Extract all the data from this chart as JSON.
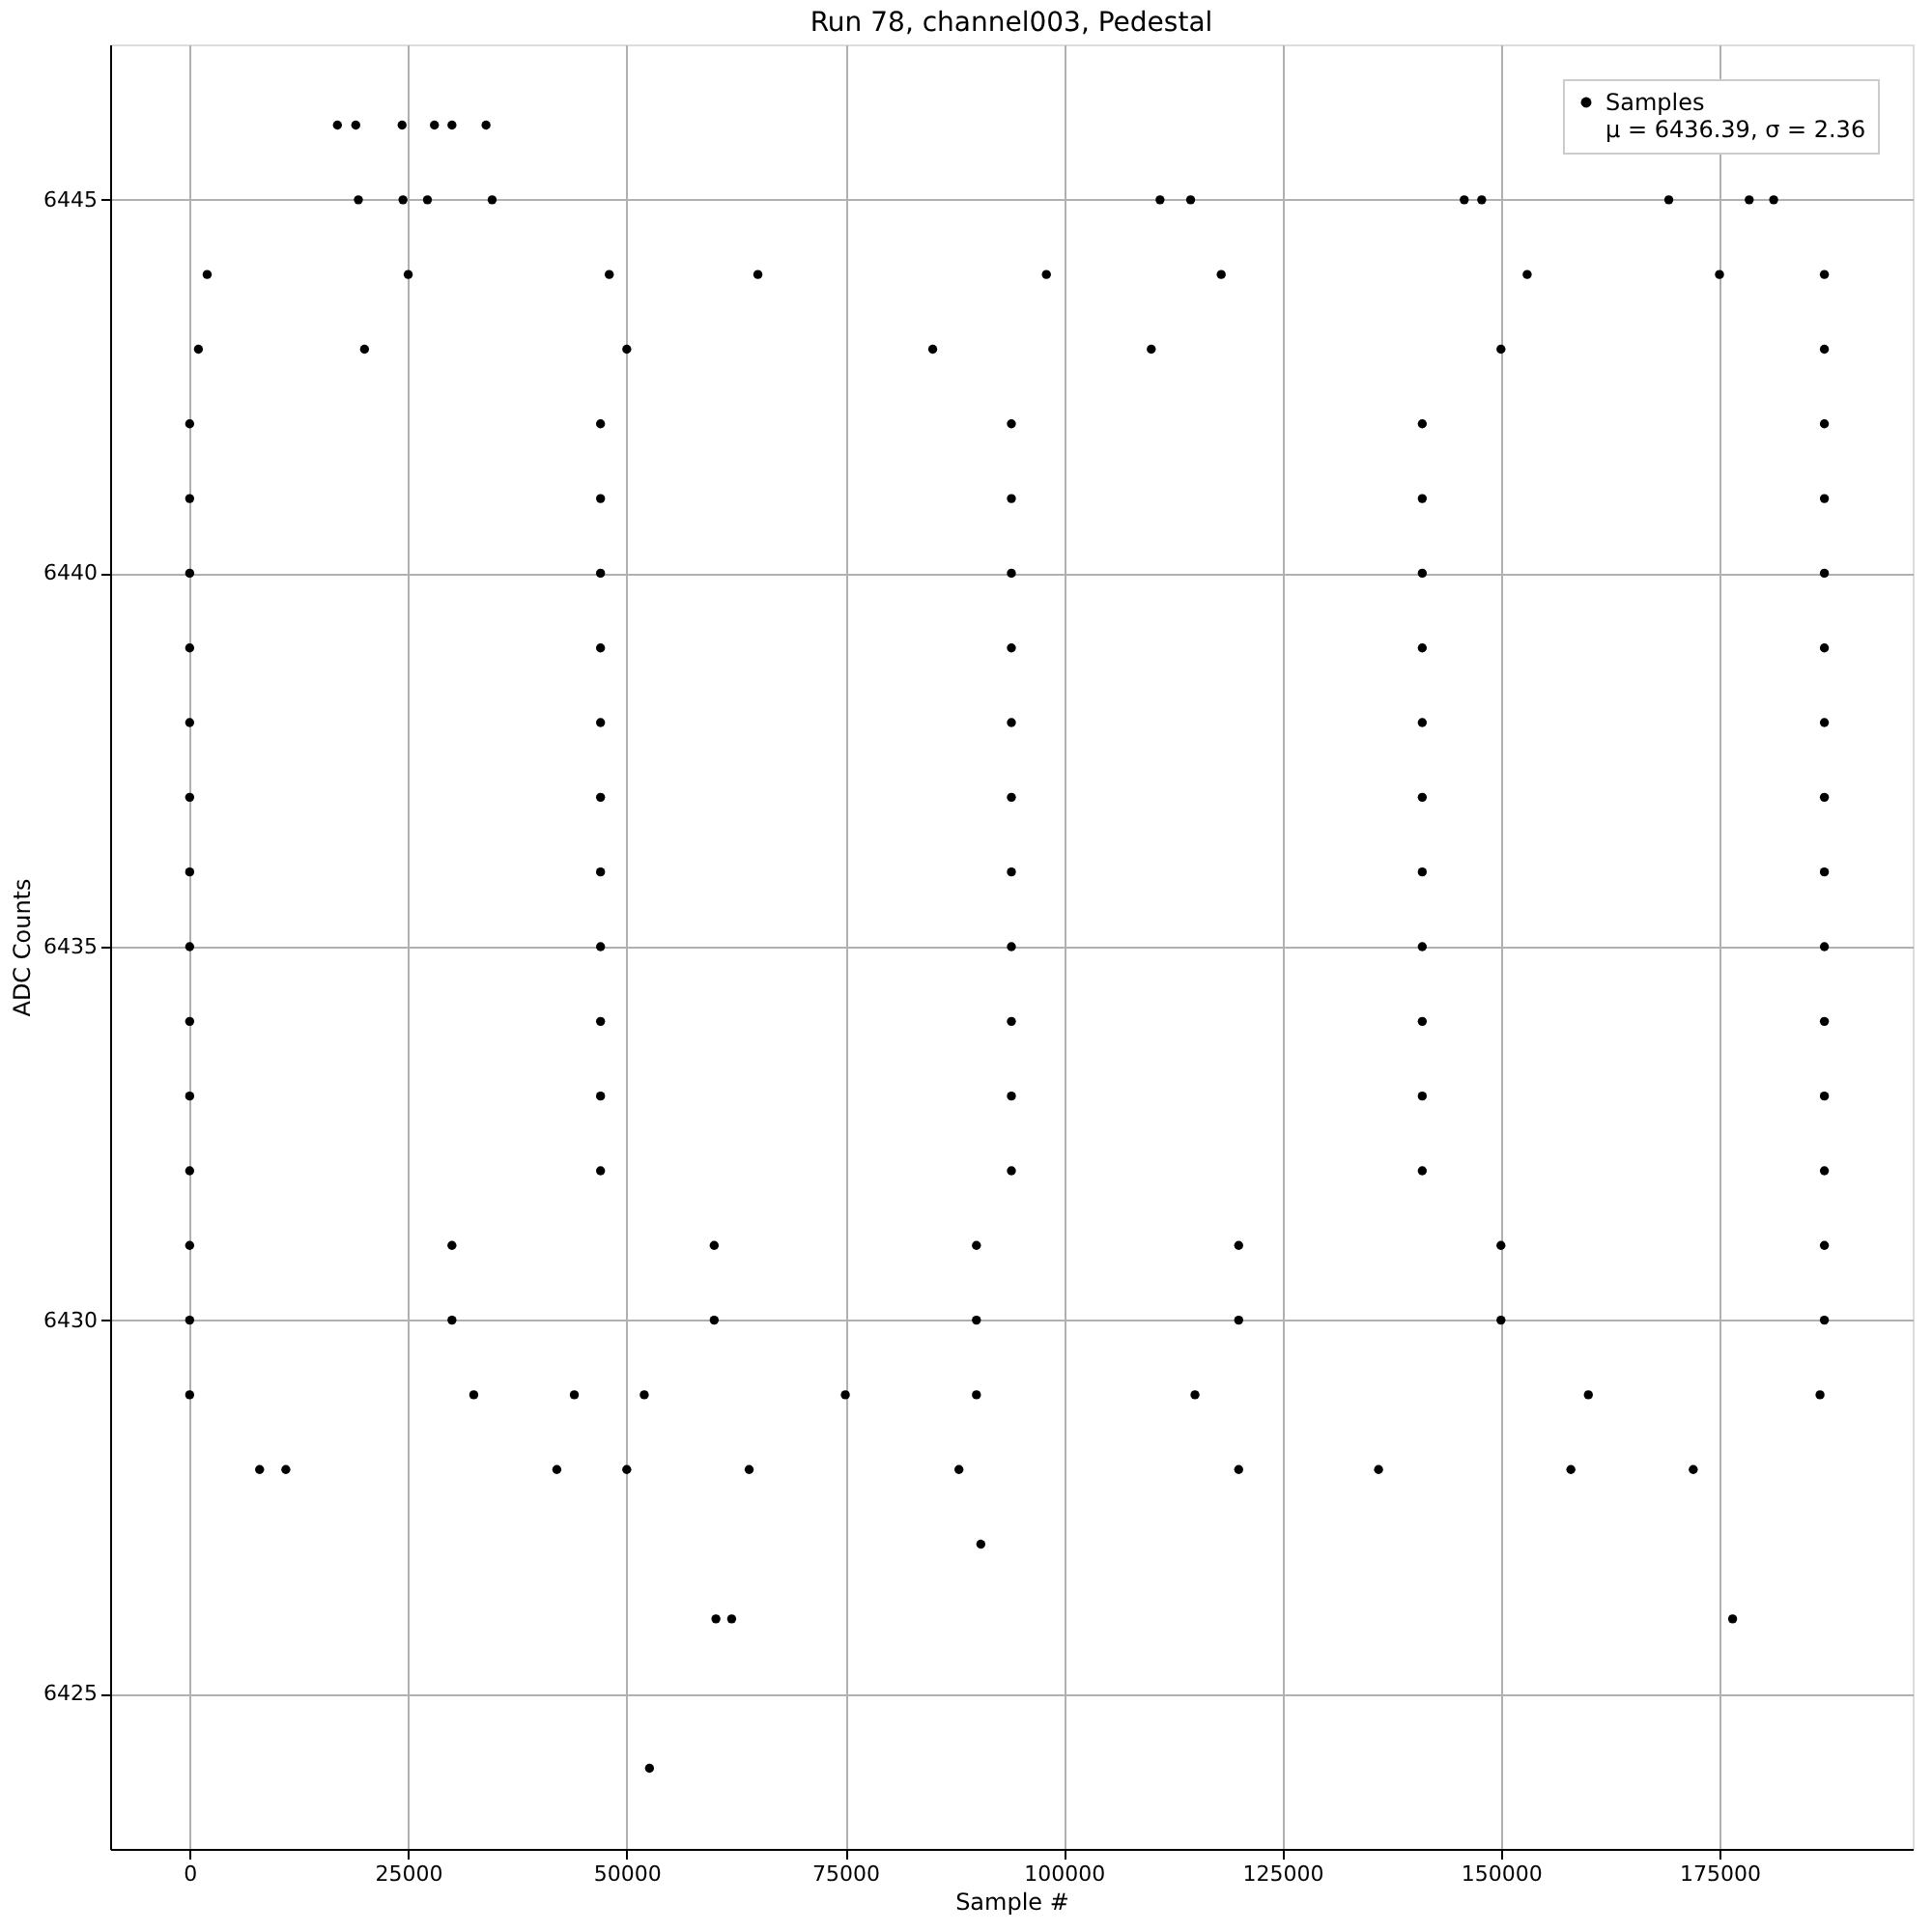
{
  "chart_data": {
    "type": "scatter",
    "title": "Run 78, channel003, Pedestal",
    "xlabel": "Sample #",
    "ylabel": "ADC Counts",
    "xlim": [
      -9100,
      197100
    ],
    "ylim": [
      6422.92,
      6447.08
    ],
    "xticks": [
      0,
      25000,
      50000,
      75000,
      100000,
      125000,
      150000,
      175000
    ],
    "yticks": [
      6425,
      6430,
      6435,
      6440,
      6445
    ],
    "grid": true,
    "legend": "top right",
    "marker": "circle",
    "series": [
      {
        "name": "Samples\nμ = 6436.39, σ = 2.36",
        "color": "#000000",
        "x": [
          0,
          47000,
          94000,
          141000,
          187000,
          0,
          47000,
          94000,
          141000,
          187000,
          0,
          47000,
          94000,
          141000,
          187000,
          0,
          47000,
          94000,
          141000,
          187000,
          0,
          47000,
          94000,
          141000,
          187000,
          0,
          47000,
          94000,
          141000,
          187000,
          0,
          47000,
          94000,
          141000,
          187000,
          0,
          47000,
          94000,
          141000,
          187000,
          0,
          47000,
          94000,
          141000,
          187000,
          0,
          47000,
          94000,
          141000,
          187000,
          0,
          47000,
          94000,
          141000,
          187000,
          0,
          30000,
          60000,
          90000,
          120000,
          150000,
          187000,
          0,
          30000,
          60000,
          90000,
          120000,
          150000,
          187000,
          1000,
          20000,
          50000,
          85000,
          110000,
          150000,
          187000,
          2000,
          25000,
          48000,
          65000,
          98000,
          118000,
          153000,
          175000,
          187000,
          0,
          32500,
          44000,
          52000,
          75000,
          90000,
          115000,
          160000,
          186500,
          8000,
          11000,
          42000,
          50000,
          64000,
          88000,
          120000,
          136000,
          158000,
          172000,
          16900,
          19000,
          24300,
          28000,
          30000,
          33900,
          19300,
          24400,
          27200,
          34600,
          111000,
          114500,
          145800,
          147800,
          169200,
          178400,
          181200,
          52600,
          60200,
          62000,
          176500,
          90500
        ],
        "values": [
          6432,
          6432,
          6432,
          6432,
          6432,
          6433,
          6433,
          6433,
          6433,
          6433,
          6434,
          6434,
          6434,
          6434,
          6434,
          6435,
          6435,
          6435,
          6435,
          6435,
          6436,
          6436,
          6436,
          6436,
          6436,
          6437,
          6437,
          6437,
          6437,
          6437,
          6438,
          6438,
          6438,
          6438,
          6438,
          6439,
          6439,
          6439,
          6439,
          6439,
          6440,
          6440,
          6440,
          6440,
          6440,
          6441,
          6441,
          6441,
          6441,
          6441,
          6442,
          6442,
          6442,
          6442,
          6442,
          6431,
          6431,
          6431,
          6431,
          6431,
          6431,
          6431,
          6430,
          6430,
          6430,
          6430,
          6430,
          6430,
          6430,
          6443,
          6443,
          6443,
          6443,
          6443,
          6443,
          6443,
          6444,
          6444,
          6444,
          6444,
          6444,
          6444,
          6444,
          6444,
          6444,
          6429,
          6429,
          6429,
          6429,
          6429,
          6429,
          6429,
          6429,
          6429,
          6428,
          6428,
          6428,
          6428,
          6428,
          6428,
          6428,
          6428,
          6428,
          6428,
          6446,
          6446,
          6446,
          6446,
          6446,
          6446,
          6445,
          6445,
          6445,
          6445,
          6445,
          6445,
          6445,
          6445,
          6445,
          6445,
          6445,
          6424,
          6426,
          6426,
          6426,
          6427
        ]
      }
    ]
  }
}
